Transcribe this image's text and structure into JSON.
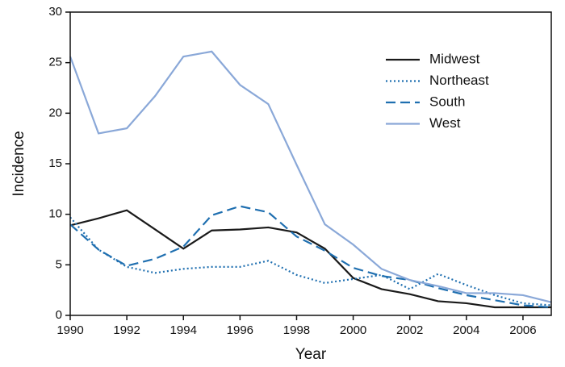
{
  "chart_data": {
    "type": "line",
    "x": [
      1990,
      1991,
      1992,
      1993,
      1994,
      1995,
      1996,
      1997,
      1998,
      1999,
      2000,
      2001,
      2002,
      2003,
      2004,
      2005,
      2006,
      2007
    ],
    "series": [
      {
        "name": "Midwest",
        "color": "#1a1a1a",
        "style": "solid",
        "values": [
          8.9,
          9.6,
          10.4,
          8.5,
          6.6,
          8.4,
          8.5,
          8.7,
          8.2,
          6.6,
          3.7,
          2.6,
          2.1,
          1.4,
          1.2,
          0.8,
          0.8,
          0.8
        ]
      },
      {
        "name": "Northeast",
        "color": "#1f6fb0",
        "style": "dotted",
        "values": [
          9.7,
          6.5,
          4.8,
          4.2,
          4.6,
          4.8,
          4.8,
          5.4,
          4.0,
          3.2,
          3.6,
          4.0,
          2.6,
          4.1,
          3.0,
          2.0,
          1.2,
          1.0
        ]
      },
      {
        "name": "South",
        "color": "#1f6fb0",
        "style": "dashed",
        "values": [
          9.0,
          6.5,
          4.9,
          5.6,
          6.8,
          9.9,
          10.8,
          10.2,
          7.8,
          6.4,
          4.7,
          3.9,
          3.5,
          2.7,
          2.0,
          1.5,
          1.0,
          0.8
        ]
      },
      {
        "name": "West",
        "color": "#8aa8d8",
        "style": "solid",
        "values": [
          25.6,
          18.0,
          18.5,
          21.7,
          25.6,
          26.1,
          22.8,
          20.9,
          14.9,
          9.0,
          7.0,
          4.6,
          3.5,
          2.9,
          2.2,
          2.2,
          2.0,
          1.3
        ]
      }
    ],
    "x_label": "Year",
    "y_label": "Incidence",
    "xlim": [
      1990,
      2007
    ],
    "xticks": [
      1990,
      1992,
      1994,
      1996,
      1998,
      2000,
      2002,
      2004,
      2006
    ],
    "ylim": [
      0,
      30
    ],
    "yticks": [
      0,
      5,
      10,
      15,
      20,
      25,
      30
    ],
    "grid": false,
    "legend": "upper-right"
  }
}
